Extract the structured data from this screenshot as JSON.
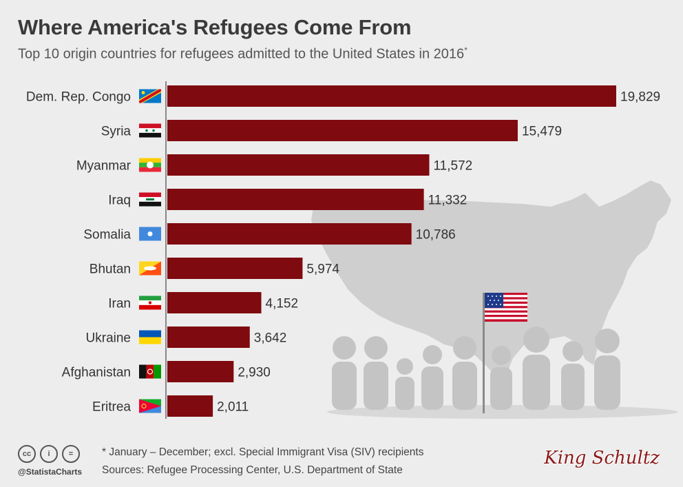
{
  "header": {
    "title": "Where America's Refugees Come From",
    "subtitle": "Top 10 origin countries for refugees admitted to the United States in 2016",
    "subtitle_mark": "*"
  },
  "chart_data": {
    "type": "bar",
    "orientation": "horizontal",
    "title": "Where America's Refugees Come From",
    "subtitle": "Top 10 origin countries for refugees admitted to the United States in 2016*",
    "categories": [
      "Dem. Rep. Congo",
      "Syria",
      "Myanmar",
      "Iraq",
      "Somalia",
      "Bhutan",
      "Iran",
      "Ukraine",
      "Afghanistan",
      "Eritrea"
    ],
    "values": [
      19829,
      15479,
      11572,
      11332,
      10786,
      5974,
      4152,
      3642,
      2930,
      2011
    ],
    "value_labels": [
      "19,829",
      "15,479",
      "11,572",
      "11,332",
      "10,786",
      "5,974",
      "4,152",
      "3,642",
      "2,930",
      "2,011"
    ],
    "xlim": [
      0,
      19829
    ],
    "grid": false,
    "legend": "none",
    "bar_color": "#7f0a0f",
    "flag_icons": [
      "dr-congo-flag-icon",
      "syria-flag-icon",
      "myanmar-flag-icon",
      "iraq-flag-icon",
      "somalia-flag-icon",
      "bhutan-flag-icon",
      "iran-flag-icon",
      "ukraine-flag-icon",
      "afghanistan-flag-icon",
      "eritrea-flag-icon"
    ]
  },
  "footer": {
    "footnote": "* January – December; excl. Special Immigrant Visa (SIV) recipients",
    "sources": "Sources: Refugee Processing Center, U.S. Department of State",
    "handle": "@StatistaCharts",
    "license_icons": [
      "cc-icon",
      "by-icon",
      "equals-icon"
    ],
    "license_glyphs": [
      "cc",
      "i",
      "="
    ],
    "watermark": "King Schultz"
  },
  "colors": {
    "background": "#ededed",
    "bar": "#7f0a0f",
    "map": "#cfcfcf",
    "people": "#c4c4c4",
    "watermark": "#8b1a1a"
  },
  "decorations": {
    "map": "usa-map-silhouette",
    "flag": "us-flag-icon",
    "people": "people-silhouettes"
  }
}
